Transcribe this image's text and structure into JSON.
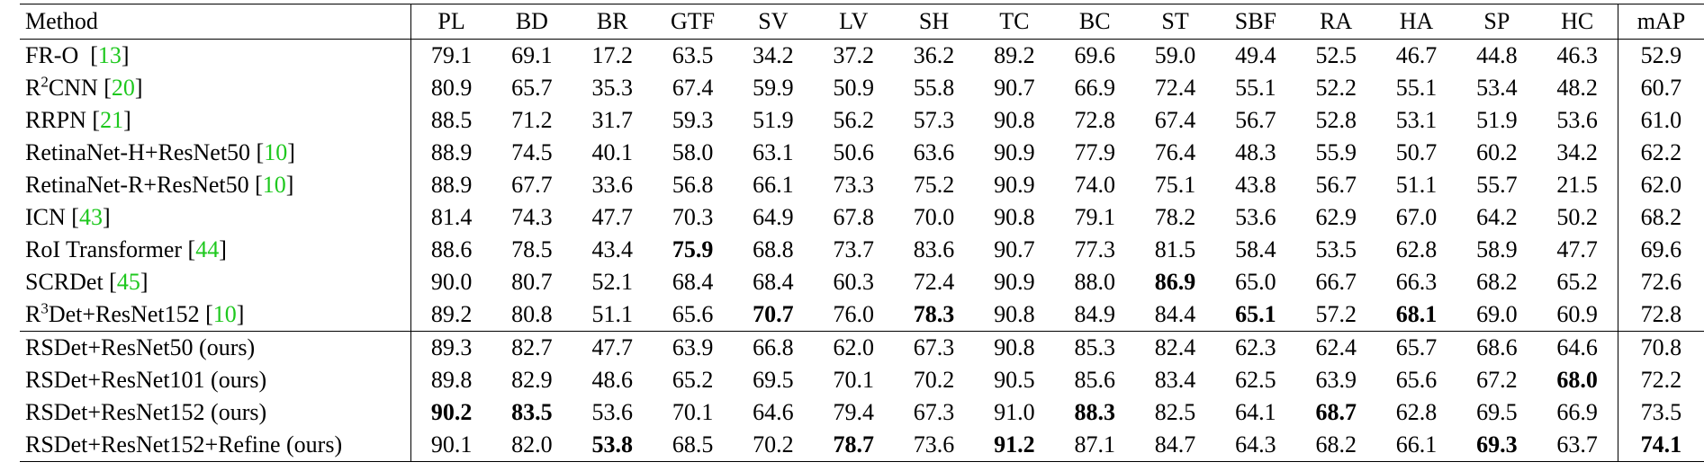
{
  "table": {
    "header": [
      "Method",
      "PL",
      "BD",
      "BR",
      "GTF",
      "SV",
      "LV",
      "SH",
      "TC",
      "BC",
      "ST",
      "SBF",
      "RA",
      "HA",
      "SP",
      "HC",
      "mAP"
    ],
    "sections": [
      {
        "rows": [
          {
            "method": [
              {
                "text": "FR-O  ["
              },
              {
                "text": "13",
                "cite": true
              },
              {
                "text": "]"
              }
            ],
            "values": [
              "79.1",
              "69.1",
              "17.2",
              "63.5",
              "34.2",
              "37.2",
              "36.2",
              "89.2",
              "69.6",
              "59.0",
              "49.4",
              "52.5",
              "46.7",
              "44.8",
              "46.3",
              "52.9"
            ]
          },
          {
            "method": [
              {
                "text": "R"
              },
              {
                "text": "2",
                "sup": true
              },
              {
                "text": "CNN ["
              },
              {
                "text": "20",
                "cite": true
              },
              {
                "text": "]"
              }
            ],
            "values": [
              "80.9",
              "65.7",
              "35.3",
              "67.4",
              "59.9",
              "50.9",
              "55.8",
              "90.7",
              "66.9",
              "72.4",
              "55.1",
              "52.2",
              "55.1",
              "53.4",
              "48.2",
              "60.7"
            ]
          },
          {
            "method": [
              {
                "text": "RRPN ["
              },
              {
                "text": "21",
                "cite": true
              },
              {
                "text": "]"
              }
            ],
            "values": [
              "88.5",
              "71.2",
              "31.7",
              "59.3",
              "51.9",
              "56.2",
              "57.3",
              "90.8",
              "72.8",
              "67.4",
              "56.7",
              "52.8",
              "53.1",
              "51.9",
              "53.6",
              "61.0"
            ]
          },
          {
            "method": [
              {
                "text": "RetinaNet-H+ResNet50 ["
              },
              {
                "text": "10",
                "cite": true
              },
              {
                "text": "]"
              }
            ],
            "values": [
              "88.9",
              "74.5",
              "40.1",
              "58.0",
              "63.1",
              "50.6",
              "63.6",
              "90.9",
              "77.9",
              "76.4",
              "48.3",
              "55.9",
              "50.7",
              "60.2",
              "34.2",
              "62.2"
            ]
          },
          {
            "method": [
              {
                "text": "RetinaNet-R+ResNet50 ["
              },
              {
                "text": "10",
                "cite": true
              },
              {
                "text": "]"
              }
            ],
            "values": [
              "88.9",
              "67.7",
              "33.6",
              "56.8",
              "66.1",
              "73.3",
              "75.2",
              "90.9",
              "74.0",
              "75.1",
              "43.8",
              "56.7",
              "51.1",
              "55.7",
              "21.5",
              "62.0"
            ]
          },
          {
            "method": [
              {
                "text": "ICN ["
              },
              {
                "text": "43",
                "cite": true
              },
              {
                "text": "]"
              }
            ],
            "values": [
              "81.4",
              "74.3",
              "47.7",
              "70.3",
              "64.9",
              "67.8",
              "70.0",
              "90.8",
              "79.1",
              "78.2",
              "53.6",
              "62.9",
              "67.0",
              "64.2",
              "50.2",
              "68.2"
            ]
          },
          {
            "method": [
              {
                "text": "RoI Transformer ["
              },
              {
                "text": "44",
                "cite": true
              },
              {
                "text": "]"
              }
            ],
            "values": [
              "88.6",
              "78.5",
              "43.4",
              "75.9",
              "68.8",
              "73.7",
              "83.6",
              "90.7",
              "77.3",
              "81.5",
              "58.4",
              "53.5",
              "62.8",
              "58.9",
              "47.7",
              "69.6"
            ],
            "bold": [
              3
            ]
          },
          {
            "method": [
              {
                "text": "SCRDet ["
              },
              {
                "text": "45",
                "cite": true
              },
              {
                "text": "]"
              }
            ],
            "values": [
              "90.0",
              "80.7",
              "52.1",
              "68.4",
              "68.4",
              "60.3",
              "72.4",
              "90.9",
              "88.0",
              "86.9",
              "65.0",
              "66.7",
              "66.3",
              "68.2",
              "65.2",
              "72.6"
            ],
            "bold": [
              9
            ]
          },
          {
            "method": [
              {
                "text": "R"
              },
              {
                "text": "3",
                "sup": true
              },
              {
                "text": "Det+ResNet152 ["
              },
              {
                "text": "10",
                "cite": true
              },
              {
                "text": "]"
              }
            ],
            "values": [
              "89.2",
              "80.8",
              "51.1",
              "65.6",
              "70.7",
              "76.0",
              "78.3",
              "90.8",
              "84.9",
              "84.4",
              "65.1",
              "57.2",
              "68.1",
              "69.0",
              "60.9",
              "72.8"
            ],
            "bold": [
              4,
              6,
              10,
              12
            ]
          }
        ]
      },
      {
        "rows": [
          {
            "method": [
              {
                "text": "RSDet+ResNet50 (ours)"
              }
            ],
            "values": [
              "89.3",
              "82.7",
              "47.7",
              "63.9",
              "66.8",
              "62.0",
              "67.3",
              "90.8",
              "85.3",
              "82.4",
              "62.3",
              "62.4",
              "65.7",
              "68.6",
              "64.6",
              "70.8"
            ]
          },
          {
            "method": [
              {
                "text": "RSDet+ResNet101 (ours)"
              }
            ],
            "values": [
              "89.8",
              "82.9",
              "48.6",
              "65.2",
              "69.5",
              "70.1",
              "70.2",
              "90.5",
              "85.6",
              "83.4",
              "62.5",
              "63.9",
              "65.6",
              "67.2",
              "68.0",
              "72.2"
            ],
            "bold": [
              14
            ]
          },
          {
            "method": [
              {
                "text": "RSDet+ResNet152 (ours)"
              }
            ],
            "values": [
              "90.2",
              "83.5",
              "53.6",
              "70.1",
              "64.6",
              "79.4",
              "67.3",
              "91.0",
              "88.3",
              "82.5",
              "64.1",
              "68.7",
              "62.8",
              "69.5",
              "66.9",
              "73.5"
            ],
            "bold": [
              0,
              1,
              8,
              11
            ]
          },
          {
            "method": [
              {
                "text": "RSDet+ResNet152+Refine (ours)"
              }
            ],
            "values": [
              "90.1",
              "82.0",
              "53.8",
              "68.5",
              "70.2",
              "78.7",
              "73.6",
              "91.2",
              "87.1",
              "84.7",
              "64.3",
              "68.2",
              "66.1",
              "69.3",
              "63.7",
              "74.1"
            ],
            "bold": [
              2,
              5,
              7,
              13,
              15
            ]
          }
        ]
      }
    ]
  }
}
